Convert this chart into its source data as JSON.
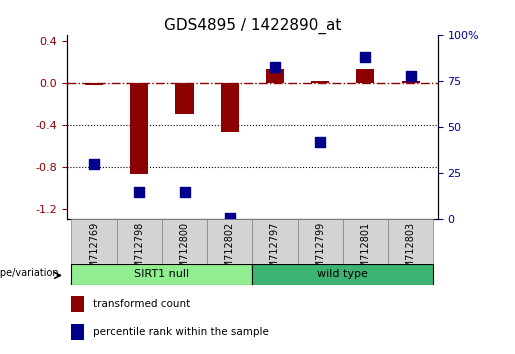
{
  "title": "GDS4895 / 1422890_at",
  "samples": [
    "GSM712769",
    "GSM712798",
    "GSM712800",
    "GSM712802",
    "GSM712797",
    "GSM712799",
    "GSM712801",
    "GSM712803"
  ],
  "transformed_count": [
    -0.02,
    -0.87,
    -0.3,
    -0.47,
    0.13,
    0.02,
    0.13,
    0.02
  ],
  "percentile_rank": [
    30,
    15,
    15,
    1,
    83,
    42,
    88,
    78
  ],
  "groups": [
    {
      "label": "SIRT1 null",
      "color": "#90EE90",
      "indices": [
        0,
        1,
        2,
        3
      ]
    },
    {
      "label": "wild type",
      "color": "#3CB371",
      "indices": [
        4,
        5,
        6,
        7
      ]
    }
  ],
  "group_label": "genotype/variation",
  "ylim_left": [
    -1.3,
    0.45
  ],
  "ylim_right": [
    0,
    100
  ],
  "yticks_left": [
    0.4,
    0.0,
    -0.4,
    -0.8,
    -1.2
  ],
  "yticks_right": [
    100,
    75,
    50,
    25,
    0
  ],
  "ytick_right_labels": [
    "100%",
    "75",
    "50",
    "25",
    "0"
  ],
  "bar_color": "#8B0000",
  "dot_color": "#00008B",
  "legend_items": [
    {
      "label": "transformed count",
      "color": "#8B0000"
    },
    {
      "label": "percentile rank within the sample",
      "color": "#00008B"
    }
  ],
  "hline_y": 0.0,
  "dotted_lines": [
    -0.4,
    -0.8
  ],
  "bar_width": 0.4,
  "dot_size": 55,
  "sirt1_null_color": "#90EE90",
  "wild_type_color": "#3CB371"
}
